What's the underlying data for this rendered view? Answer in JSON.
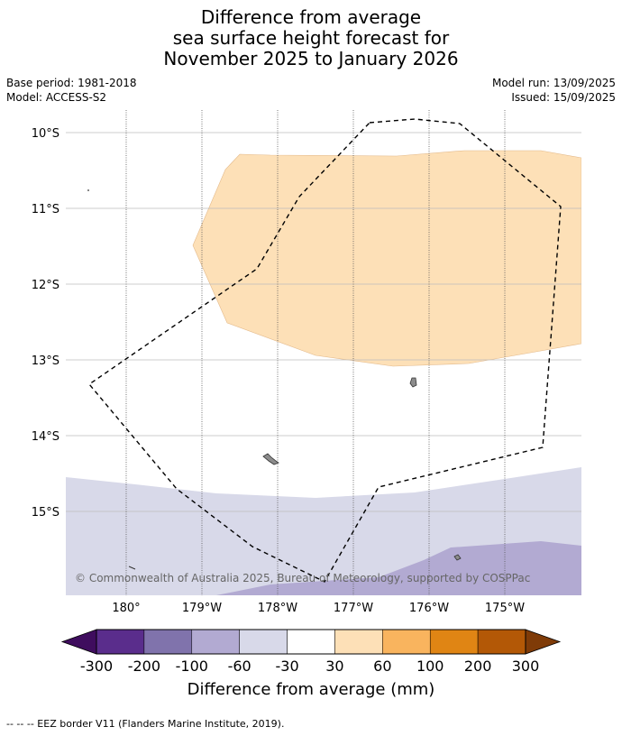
{
  "title": {
    "line1": "Difference from average",
    "line2": "sea surface height forecast for",
    "line3": "November 2025 to January 2026"
  },
  "meta": {
    "base_period": "Base period: 1981-2018",
    "model": "Model: ACCESS-S2",
    "model_run": "Model run: 13/09/2025",
    "issued": "Issued: 15/09/2025"
  },
  "map": {
    "latitude_labels": [
      "10°S",
      "11°S",
      "12°S",
      "13°S",
      "14°S",
      "15°S"
    ],
    "longitude_labels": [
      "180°",
      "179°W",
      "178°W",
      "177°W",
      "176°W",
      "175°W"
    ],
    "copyright": "© Commonwealth of Australia 2025, Bureau of Meteorology, supported by COSPPac",
    "colors": {
      "band_30_60": "#fde0b7",
      "band_m60_m30": "#d8d9e9",
      "band_m100_m60": "#b2aad2",
      "land": "#8c8c8c",
      "grid": "#bdbdbd",
      "eez": "#000000"
    }
  },
  "colorbar": {
    "ticks": [
      "-300",
      "-200",
      "-100",
      "-60",
      "-30",
      "30",
      "60",
      "100",
      "200",
      "300"
    ],
    "colors": [
      "#3f0d5e",
      "#5a2d8c",
      "#8073ac",
      "#b2aad2",
      "#d8d9e9",
      "#ffffff",
      "#fde0b7",
      "#f9b45e",
      "#e08514",
      "#b35806",
      "#7f3b08"
    ],
    "title": "Difference from average (mm)"
  },
  "footer": "--  --  -- EEZ border V11 (Flanders Marine Institute, 2019)."
}
